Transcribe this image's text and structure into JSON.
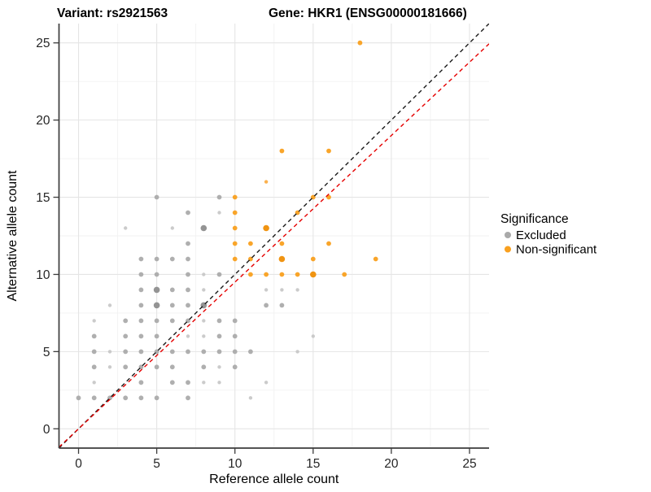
{
  "chart": {
    "title_left": "Variant: rs2921563",
    "title_right": "Gene: HKR1 (ENSG00000181666)",
    "xlabel": "Reference allele count",
    "ylabel": "Alternative allele count",
    "legend_title": "Significance",
    "legend_items": [
      {
        "label": "Excluded",
        "color": "#A9A9A9"
      },
      {
        "label": "Non-significant",
        "color": "#F9A01F"
      }
    ]
  },
  "chart_data": {
    "type": "scatter",
    "title": "Variant: rs2921563   Gene: HKR1 (ENSG00000181666)",
    "xlabel": "Reference allele count",
    "ylabel": "Alternative allele count",
    "xlim": [
      -1.25,
      26.25
    ],
    "ylim": [
      -1.25,
      26.25
    ],
    "xticks": [
      0,
      5,
      10,
      15,
      20,
      25
    ],
    "yticks": [
      0,
      5,
      10,
      15,
      20,
      25
    ],
    "minor_ticks": [
      2.5,
      7.5,
      12.5,
      17.5,
      22.5
    ],
    "grid": true,
    "legend_position": "right",
    "point_note": "points are [ref_count, alt_count, size_class]; size_class 1=small 2=normal 3=large(overlap)",
    "series": [
      {
        "name": "Excluded",
        "color": "#ABABAB",
        "size_colors": {
          "1": "#C8C8C8",
          "2": "#ABABAB",
          "3": "#8E8E8E"
        },
        "points": [
          [
            0,
            2,
            2
          ],
          [
            1,
            2,
            2
          ],
          [
            2,
            2,
            2
          ],
          [
            3,
            2,
            2
          ],
          [
            4,
            2,
            2
          ],
          [
            5,
            2,
            2
          ],
          [
            7,
            2,
            2
          ],
          [
            11,
            2,
            1
          ],
          [
            1,
            3,
            1
          ],
          [
            4,
            3,
            2
          ],
          [
            6,
            3,
            2
          ],
          [
            7,
            3,
            2
          ],
          [
            8,
            3,
            1
          ],
          [
            9,
            3,
            1
          ],
          [
            12,
            3,
            1
          ],
          [
            1,
            4,
            2
          ],
          [
            2,
            4,
            1
          ],
          [
            3,
            4,
            2
          ],
          [
            4,
            4,
            2
          ],
          [
            5,
            4,
            2
          ],
          [
            6,
            4,
            2
          ],
          [
            8,
            4,
            2
          ],
          [
            9,
            4,
            1
          ],
          [
            10,
            4,
            2
          ],
          [
            1,
            5,
            2
          ],
          [
            2,
            5,
            1
          ],
          [
            3,
            5,
            2
          ],
          [
            4,
            5,
            2
          ],
          [
            5,
            5,
            2
          ],
          [
            6,
            5,
            2
          ],
          [
            7,
            5,
            2
          ],
          [
            8,
            5,
            2
          ],
          [
            9,
            5,
            2
          ],
          [
            10,
            5,
            2
          ],
          [
            11,
            5,
            2
          ],
          [
            14,
            5,
            1
          ],
          [
            1,
            6,
            2
          ],
          [
            3,
            6,
            2
          ],
          [
            4,
            6,
            2
          ],
          [
            5,
            6,
            2
          ],
          [
            7,
            6,
            1
          ],
          [
            8,
            6,
            1
          ],
          [
            9,
            6,
            2
          ],
          [
            10,
            6,
            2
          ],
          [
            15,
            6,
            1
          ],
          [
            1,
            7,
            1
          ],
          [
            3,
            7,
            2
          ],
          [
            4,
            7,
            2
          ],
          [
            5,
            7,
            2
          ],
          [
            6,
            7,
            2
          ],
          [
            7,
            7,
            2
          ],
          [
            8,
            7,
            1
          ],
          [
            9,
            7,
            2
          ],
          [
            10,
            7,
            2
          ],
          [
            2,
            8,
            1
          ],
          [
            4,
            8,
            2
          ],
          [
            5,
            8,
            3
          ],
          [
            6,
            8,
            2
          ],
          [
            7,
            8,
            2
          ],
          [
            8,
            8,
            3
          ],
          [
            12,
            8,
            2
          ],
          [
            13,
            8,
            2
          ],
          [
            4,
            9,
            2
          ],
          [
            5,
            9,
            3
          ],
          [
            6,
            9,
            2
          ],
          [
            7,
            9,
            2
          ],
          [
            8,
            9,
            1
          ],
          [
            12,
            9,
            1
          ],
          [
            13,
            9,
            1
          ],
          [
            14,
            9,
            1
          ],
          [
            4,
            10,
            2
          ],
          [
            5,
            10,
            2
          ],
          [
            7,
            10,
            2
          ],
          [
            8,
            10,
            1
          ],
          [
            9,
            10,
            2
          ],
          [
            4,
            11,
            2
          ],
          [
            5,
            11,
            2
          ],
          [
            6,
            11,
            2
          ],
          [
            7,
            11,
            2
          ],
          [
            7,
            12,
            2
          ],
          [
            3,
            13,
            1
          ],
          [
            6,
            13,
            1
          ],
          [
            8,
            13,
            3
          ],
          [
            7,
            14,
            2
          ],
          [
            9,
            14,
            1
          ],
          [
            5,
            15,
            2
          ],
          [
            9,
            15,
            2
          ]
        ]
      },
      {
        "name": "Non-significant",
        "color": "#F9A01F",
        "size_colors": {
          "1": "#FBAD45",
          "2": "#F9A01F",
          "3": "#EF8E05"
        },
        "points": [
          [
            10,
            11,
            2
          ],
          [
            10,
            12,
            2
          ],
          [
            10,
            13,
            2
          ],
          [
            10,
            14,
            2
          ],
          [
            10,
            15,
            2
          ],
          [
            11,
            10,
            2
          ],
          [
            11,
            11,
            2
          ],
          [
            11,
            12,
            2
          ],
          [
            12,
            10,
            2
          ],
          [
            12,
            13,
            3
          ],
          [
            12,
            16,
            1
          ],
          [
            13,
            10,
            2
          ],
          [
            13,
            11,
            3
          ],
          [
            13,
            12,
            2
          ],
          [
            13,
            18,
            2
          ],
          [
            14,
            10,
            2
          ],
          [
            14,
            14,
            2
          ],
          [
            15,
            10,
            3
          ],
          [
            15,
            11,
            2
          ],
          [
            15,
            15,
            2
          ],
          [
            16,
            12,
            2
          ],
          [
            16,
            15,
            2
          ],
          [
            16,
            18,
            2
          ],
          [
            17,
            10,
            2
          ],
          [
            18,
            25,
            2
          ],
          [
            19,
            11,
            2
          ]
        ]
      }
    ],
    "lines": [
      {
        "name": "identity-line",
        "slope": 1.0,
        "intercept": 0,
        "color": "#1A1A1A",
        "style": "dashed"
      },
      {
        "name": "ratio-line",
        "slope": 0.95,
        "intercept": 0,
        "color": "#E50000",
        "style": "dashed"
      }
    ]
  },
  "style": {
    "grid_major": "#E5E5E5",
    "grid_minor": "#F2F2F2",
    "axis_line": "#3C3C3C",
    "tick_color": "#3C3C3C",
    "tick_label_color": "#262626",
    "text_color": "#000000",
    "background": "#FFFFFF"
  }
}
